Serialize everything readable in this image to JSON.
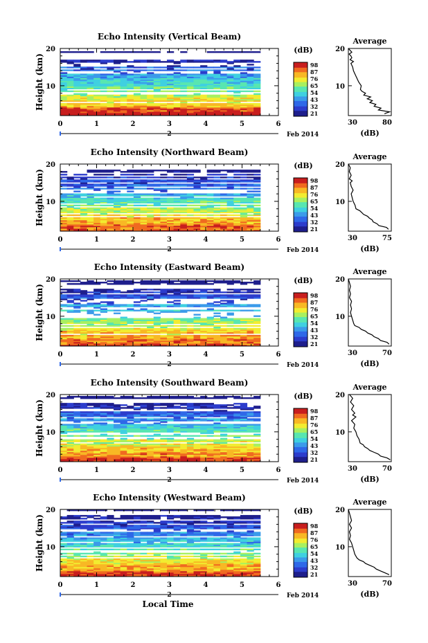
{
  "figure": {
    "xlabel": "Local Time",
    "date_label": "Feb 2014",
    "colors": {
      "colormap": [
        "#1e1e8c",
        "#2c3ccc",
        "#2f68e8",
        "#3b9bea",
        "#3fd0e0",
        "#58e6b0",
        "#a8f060",
        "#f2ec30",
        "#f8b824",
        "#f06a20",
        "#c81e1e"
      ],
      "background": "#ffffff",
      "axis": "#000000"
    }
  },
  "chart_data": [
    {
      "type": "heatmap",
      "title": "Echo Intensity (Vertical Beam)",
      "xlabel": "",
      "ylabel": "Height (km)",
      "xlim": [
        0,
        6
      ],
      "ylim": [
        2,
        20
      ],
      "xticks": [
        "0",
        "1",
        "2",
        "3",
        "4",
        "5",
        "6"
      ],
      "yticks": [
        "10",
        "20"
      ],
      "day_marker": "2",
      "data_x_range": [
        0,
        5.5
      ],
      "colorbar": {
        "unit": "(dB)",
        "ticks": [
          "98",
          "87",
          "76",
          "65",
          "54",
          "43",
          "32",
          "21"
        ]
      },
      "profile": {
        "title": "Average",
        "xlabel": "(dB)",
        "xlim": [
          30,
          80
        ],
        "xticks": [
          "30",
          "80"
        ],
        "ylim": [
          2,
          20
        ],
        "yticks": [
          "10",
          "20"
        ],
        "points": [
          [
            72,
            2.5
          ],
          [
            78,
            3
          ],
          [
            65,
            3.5
          ],
          [
            68,
            4
          ],
          [
            60,
            4.5
          ],
          [
            62,
            5
          ],
          [
            55,
            5.5
          ],
          [
            58,
            6
          ],
          [
            52,
            6.5
          ],
          [
            56,
            7
          ],
          [
            48,
            7.5
          ],
          [
            50,
            8
          ],
          [
            46,
            8.5
          ],
          [
            44,
            9
          ],
          [
            45,
            10
          ],
          [
            42,
            11
          ],
          [
            40,
            12
          ],
          [
            38,
            13
          ],
          [
            36,
            14
          ],
          [
            35,
            15
          ],
          [
            34,
            15.5
          ],
          [
            33,
            16
          ],
          [
            36,
            16.5
          ],
          [
            32,
            17
          ],
          [
            34,
            17.5
          ],
          [
            33,
            18
          ],
          [
            31,
            18.5
          ],
          [
            34,
            19
          ],
          [
            32,
            19.5
          ],
          [
            30,
            20
          ]
        ]
      }
    },
    {
      "type": "heatmap",
      "title": "Echo Intensity (Northward Beam)",
      "xlabel": "",
      "ylabel": "Height (km)",
      "xlim": [
        0,
        6
      ],
      "ylim": [
        2,
        20
      ],
      "xticks": [
        "0",
        "1",
        "2",
        "3",
        "4",
        "5",
        "6"
      ],
      "yticks": [
        "10",
        "20"
      ],
      "day_marker": "2",
      "data_x_range": [
        0,
        5.5
      ],
      "colorbar": {
        "unit": "(dB)",
        "ticks": [
          "98",
          "87",
          "76",
          "65",
          "54",
          "43",
          "32",
          "21"
        ]
      },
      "profile": {
        "title": "Average",
        "xlabel": "(dB)",
        "xlim": [
          30,
          75
        ],
        "xticks": [
          "30",
          "75"
        ],
        "ylim": [
          2,
          20
        ],
        "yticks": [
          "10",
          "20"
        ],
        "points": [
          [
            72,
            2.5
          ],
          [
            70,
            3
          ],
          [
            62,
            3.5
          ],
          [
            60,
            4
          ],
          [
            56,
            4.5
          ],
          [
            55,
            5
          ],
          [
            52,
            5.5
          ],
          [
            50,
            6
          ],
          [
            46,
            6.5
          ],
          [
            44,
            7
          ],
          [
            42,
            7.5
          ],
          [
            38,
            8
          ],
          [
            37,
            9
          ],
          [
            35,
            10
          ],
          [
            34,
            11
          ],
          [
            33,
            12
          ],
          [
            35,
            13
          ],
          [
            33,
            14
          ],
          [
            32,
            15
          ],
          [
            34,
            15.5
          ],
          [
            31,
            16
          ],
          [
            33,
            17
          ],
          [
            31,
            18
          ],
          [
            32,
            19
          ],
          [
            30,
            20
          ]
        ]
      }
    },
    {
      "type": "heatmap",
      "title": "Echo Intensity (Eastward Beam)",
      "xlabel": "",
      "ylabel": "Height (km)",
      "xlim": [
        0,
        6
      ],
      "ylim": [
        2,
        20
      ],
      "xticks": [
        "0",
        "1",
        "2",
        "3",
        "4",
        "5",
        "6"
      ],
      "yticks": [
        "10",
        "20"
      ],
      "day_marker": "2",
      "data_x_range": [
        0,
        5.5
      ],
      "colorbar": {
        "unit": "(dB)",
        "ticks": [
          "98",
          "87",
          "76",
          "65",
          "54",
          "43",
          "32",
          "21"
        ]
      },
      "profile": {
        "title": "Average",
        "xlabel": "(dB)",
        "xlim": [
          30,
          70
        ],
        "xticks": [
          "30",
          "70"
        ],
        "ylim": [
          2,
          20
        ],
        "yticks": [
          "10",
          "20"
        ],
        "points": [
          [
            68,
            2.5
          ],
          [
            66,
            3
          ],
          [
            60,
            3.5
          ],
          [
            58,
            4
          ],
          [
            54,
            4.5
          ],
          [
            52,
            5
          ],
          [
            48,
            5.5
          ],
          [
            46,
            6
          ],
          [
            42,
            6.5
          ],
          [
            40,
            7
          ],
          [
            36,
            7.5
          ],
          [
            35,
            8
          ],
          [
            34,
            9
          ],
          [
            33,
            10
          ],
          [
            32,
            11
          ],
          [
            33,
            12
          ],
          [
            32,
            13
          ],
          [
            33,
            14
          ],
          [
            31,
            15
          ],
          [
            32,
            16
          ],
          [
            31,
            17
          ],
          [
            32,
            18
          ],
          [
            31,
            19
          ],
          [
            30,
            20
          ]
        ]
      }
    },
    {
      "type": "heatmap",
      "title": "Echo Intensity (Southward Beam)",
      "xlabel": "",
      "ylabel": "Height (km)",
      "xlim": [
        0,
        6
      ],
      "ylim": [
        2,
        20
      ],
      "xticks": [
        "0",
        "1",
        "2",
        "3",
        "4",
        "5",
        "6"
      ],
      "yticks": [
        "10",
        "20"
      ],
      "day_marker": "2",
      "data_x_range": [
        0,
        5.5
      ],
      "colorbar": {
        "unit": "(dB)",
        "ticks": [
          "98",
          "87",
          "76",
          "65",
          "54",
          "43",
          "32",
          "21"
        ]
      },
      "profile": {
        "title": "Average",
        "xlabel": "(dB)",
        "xlim": [
          30,
          70
        ],
        "xticks": [
          "30",
          "70"
        ],
        "ylim": [
          2,
          20
        ],
        "yticks": [
          "10",
          "20"
        ],
        "points": [
          [
            69,
            2.5
          ],
          [
            66,
            3
          ],
          [
            60,
            3.5
          ],
          [
            58,
            4
          ],
          [
            54,
            4.5
          ],
          [
            50,
            5
          ],
          [
            48,
            5.5
          ],
          [
            45,
            6
          ],
          [
            44,
            6.5
          ],
          [
            41,
            7
          ],
          [
            40,
            8
          ],
          [
            38,
            9
          ],
          [
            37,
            10
          ],
          [
            35,
            11
          ],
          [
            36,
            12
          ],
          [
            33,
            13
          ],
          [
            37,
            14
          ],
          [
            34,
            14.5
          ],
          [
            36,
            15
          ],
          [
            33,
            16
          ],
          [
            35,
            17
          ],
          [
            32,
            18
          ],
          [
            34,
            19
          ],
          [
            31,
            20
          ]
        ]
      }
    },
    {
      "type": "heatmap",
      "title": "Echo Intensity (Westward Beam)",
      "xlabel": "Local Time",
      "ylabel": "Height (km)",
      "xlim": [
        0,
        6
      ],
      "ylim": [
        2,
        20
      ],
      "xticks": [
        "0",
        "1",
        "2",
        "3",
        "4",
        "5",
        "6"
      ],
      "yticks": [
        "10",
        "20"
      ],
      "day_marker": "2",
      "data_x_range": [
        0,
        5.5
      ],
      "colorbar": {
        "unit": "(dB)",
        "ticks": [
          "98",
          "87",
          "76",
          "65",
          "54",
          "43",
          "32",
          "21"
        ]
      },
      "profile": {
        "title": "Average",
        "xlabel": "(dB)",
        "xlim": [
          30,
          70
        ],
        "xticks": [
          "30",
          "70"
        ],
        "ylim": [
          2,
          20
        ],
        "yticks": [
          "10",
          "20"
        ],
        "points": [
          [
            68,
            2.5
          ],
          [
            64,
            3
          ],
          [
            60,
            3.5
          ],
          [
            56,
            4
          ],
          [
            54,
            4.5
          ],
          [
            50,
            5
          ],
          [
            46,
            5.5
          ],
          [
            44,
            6
          ],
          [
            40,
            6.5
          ],
          [
            38,
            7
          ],
          [
            36,
            8
          ],
          [
            35,
            9
          ],
          [
            34,
            10
          ],
          [
            33,
            11
          ],
          [
            31,
            12
          ],
          [
            32,
            13
          ],
          [
            31,
            14
          ],
          [
            33,
            15
          ],
          [
            31,
            16
          ],
          [
            33,
            17
          ],
          [
            32,
            18
          ],
          [
            31,
            19
          ],
          [
            30,
            20
          ]
        ]
      }
    }
  ]
}
